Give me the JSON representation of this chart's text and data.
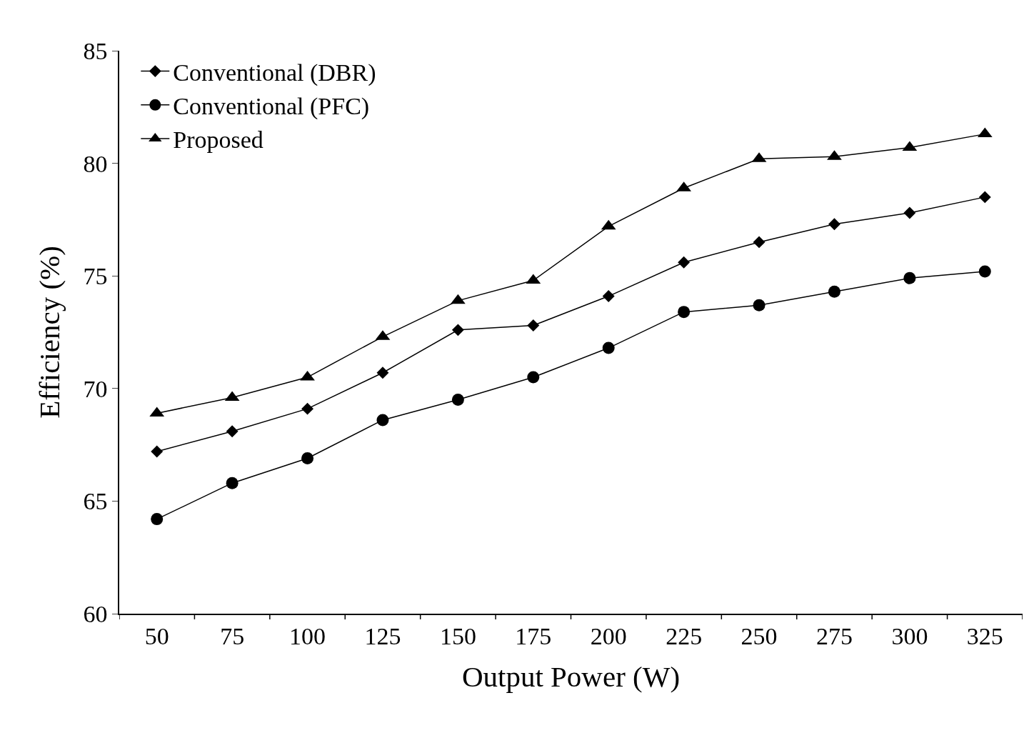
{
  "chart_data": {
    "type": "line",
    "xlabel": "Output Power (W)",
    "ylabel": "Efficiency (%)",
    "categories": [
      "50",
      "75",
      "100",
      "125",
      "150",
      "175",
      "200",
      "225",
      "250",
      "275",
      "300",
      "325"
    ],
    "series": [
      {
        "name": "Conventional (DBR)",
        "color": "#000000",
        "marker": "diamond",
        "values": [
          67.2,
          68.1,
          69.1,
          70.7,
          72.6,
          72.8,
          74.1,
          75.6,
          76.5,
          77.3,
          77.8,
          78.5
        ]
      },
      {
        "name": "Conventional (PFC)",
        "color": "#000000",
        "marker": "circle",
        "values": [
          64.2,
          65.8,
          66.9,
          68.6,
          69.5,
          70.5,
          71.8,
          73.4,
          73.7,
          74.3,
          74.9,
          75.2
        ]
      },
      {
        "name": "Proposed",
        "color": "#000000",
        "marker": "triangle",
        "values": [
          68.9,
          69.6,
          70.5,
          72.3,
          73.9,
          74.8,
          77.2,
          78.9,
          80.2,
          80.3,
          80.7,
          81.3
        ]
      }
    ],
    "ylim": [
      60,
      85
    ],
    "yticks": [
      60,
      65,
      70,
      75,
      80,
      85
    ],
    "legend": "top left",
    "line_style": "solid"
  }
}
